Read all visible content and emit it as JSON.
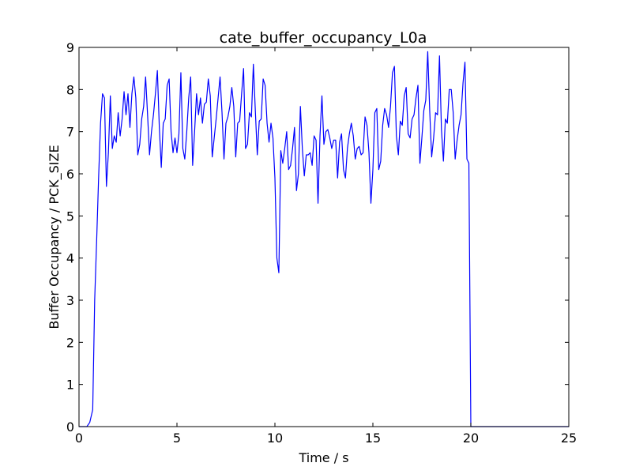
{
  "chart_data": {
    "type": "line",
    "title": "cate_buffer_occupancy_L0a",
    "xlabel": "Time / s",
    "ylabel": "Buffer Occupancy / PCK_SIZE",
    "xlim": [
      0,
      25
    ],
    "ylim": [
      0,
      9
    ],
    "xticks": [
      0,
      5,
      10,
      15,
      20,
      25
    ],
    "yticks": [
      0,
      1,
      2,
      3,
      4,
      5,
      6,
      7,
      8,
      9
    ],
    "grid": false,
    "legend": "none",
    "series": [
      {
        "color": "#0000ff",
        "points": [
          [
            0.0,
            0.0
          ],
          [
            0.4,
            0.0
          ],
          [
            0.55,
            0.1
          ],
          [
            0.7,
            0.4
          ],
          [
            0.8,
            3.0
          ],
          [
            0.9,
            4.4
          ],
          [
            1.0,
            5.9
          ],
          [
            1.1,
            7.2
          ],
          [
            1.2,
            7.9
          ],
          [
            1.3,
            7.8
          ],
          [
            1.4,
            5.7
          ],
          [
            1.5,
            6.5
          ],
          [
            1.6,
            7.85
          ],
          [
            1.7,
            6.6
          ],
          [
            1.8,
            6.9
          ],
          [
            1.9,
            6.75
          ],
          [
            2.0,
            7.45
          ],
          [
            2.1,
            6.9
          ],
          [
            2.2,
            7.3
          ],
          [
            2.3,
            7.95
          ],
          [
            2.4,
            7.4
          ],
          [
            2.5,
            7.9
          ],
          [
            2.6,
            7.1
          ],
          [
            2.7,
            7.9
          ],
          [
            2.8,
            8.3
          ],
          [
            2.9,
            7.8
          ],
          [
            3.0,
            6.45
          ],
          [
            3.1,
            6.7
          ],
          [
            3.2,
            7.3
          ],
          [
            3.3,
            7.6
          ],
          [
            3.4,
            8.3
          ],
          [
            3.5,
            7.4
          ],
          [
            3.6,
            6.45
          ],
          [
            3.7,
            7.0
          ],
          [
            3.8,
            7.4
          ],
          [
            3.9,
            7.9
          ],
          [
            4.0,
            8.45
          ],
          [
            4.1,
            7.1
          ],
          [
            4.2,
            6.15
          ],
          [
            4.3,
            7.2
          ],
          [
            4.4,
            7.3
          ],
          [
            4.5,
            8.1
          ],
          [
            4.6,
            8.25
          ],
          [
            4.7,
            7.0
          ],
          [
            4.8,
            6.5
          ],
          [
            4.9,
            6.85
          ],
          [
            5.0,
            6.5
          ],
          [
            5.1,
            6.95
          ],
          [
            5.2,
            8.4
          ],
          [
            5.3,
            6.6
          ],
          [
            5.4,
            6.35
          ],
          [
            5.5,
            7.0
          ],
          [
            5.6,
            7.8
          ],
          [
            5.7,
            8.3
          ],
          [
            5.8,
            6.2
          ],
          [
            5.9,
            7.0
          ],
          [
            6.0,
            7.9
          ],
          [
            6.1,
            7.4
          ],
          [
            6.2,
            7.8
          ],
          [
            6.3,
            7.2
          ],
          [
            6.4,
            7.65
          ],
          [
            6.5,
            7.7
          ],
          [
            6.6,
            8.25
          ],
          [
            6.7,
            7.85
          ],
          [
            6.8,
            6.4
          ],
          [
            6.9,
            6.85
          ],
          [
            7.0,
            7.3
          ],
          [
            7.1,
            7.8
          ],
          [
            7.2,
            8.3
          ],
          [
            7.3,
            7.45
          ],
          [
            7.4,
            6.35
          ],
          [
            7.5,
            7.2
          ],
          [
            7.6,
            7.35
          ],
          [
            7.7,
            7.6
          ],
          [
            7.8,
            8.05
          ],
          [
            7.9,
            7.6
          ],
          [
            8.0,
            6.4
          ],
          [
            8.1,
            7.2
          ],
          [
            8.2,
            7.25
          ],
          [
            8.3,
            7.9
          ],
          [
            8.4,
            8.5
          ],
          [
            8.5,
            6.6
          ],
          [
            8.6,
            6.7
          ],
          [
            8.7,
            7.45
          ],
          [
            8.8,
            7.35
          ],
          [
            8.9,
            8.6
          ],
          [
            9.0,
            7.5
          ],
          [
            9.1,
            6.45
          ],
          [
            9.2,
            7.25
          ],
          [
            9.3,
            7.3
          ],
          [
            9.4,
            8.25
          ],
          [
            9.5,
            8.1
          ],
          [
            9.6,
            7.2
          ],
          [
            9.7,
            6.75
          ],
          [
            9.8,
            7.2
          ],
          [
            9.9,
            6.85
          ],
          [
            10.0,
            5.9
          ],
          [
            10.1,
            4.0
          ],
          [
            10.2,
            3.65
          ],
          [
            10.3,
            6.55
          ],
          [
            10.4,
            6.25
          ],
          [
            10.5,
            6.6
          ],
          [
            10.6,
            7.0
          ],
          [
            10.7,
            6.1
          ],
          [
            10.8,
            6.2
          ],
          [
            10.9,
            6.6
          ],
          [
            11.0,
            7.1
          ],
          [
            11.1,
            5.6
          ],
          [
            11.2,
            6.0
          ],
          [
            11.3,
            7.6
          ],
          [
            11.4,
            6.6
          ],
          [
            11.5,
            5.95
          ],
          [
            11.6,
            6.45
          ],
          [
            11.7,
            6.45
          ],
          [
            11.8,
            6.5
          ],
          [
            11.9,
            6.2
          ],
          [
            12.0,
            6.9
          ],
          [
            12.1,
            6.8
          ],
          [
            12.2,
            5.3
          ],
          [
            12.3,
            6.9
          ],
          [
            12.4,
            7.85
          ],
          [
            12.5,
            6.7
          ],
          [
            12.6,
            7.0
          ],
          [
            12.7,
            7.05
          ],
          [
            12.8,
            6.85
          ],
          [
            12.9,
            6.6
          ],
          [
            13.0,
            6.8
          ],
          [
            13.1,
            6.8
          ],
          [
            13.2,
            5.9
          ],
          [
            13.3,
            6.75
          ],
          [
            13.4,
            6.95
          ],
          [
            13.5,
            6.1
          ],
          [
            13.6,
            5.9
          ],
          [
            13.7,
            6.6
          ],
          [
            13.8,
            6.95
          ],
          [
            13.9,
            7.2
          ],
          [
            14.0,
            6.9
          ],
          [
            14.1,
            6.35
          ],
          [
            14.2,
            6.6
          ],
          [
            14.3,
            6.65
          ],
          [
            14.4,
            6.45
          ],
          [
            14.5,
            6.5
          ],
          [
            14.6,
            7.35
          ],
          [
            14.7,
            7.15
          ],
          [
            14.8,
            6.5
          ],
          [
            14.9,
            5.3
          ],
          [
            15.0,
            6.1
          ],
          [
            15.1,
            7.45
          ],
          [
            15.2,
            7.55
          ],
          [
            15.3,
            6.1
          ],
          [
            15.4,
            6.3
          ],
          [
            15.5,
            7.15
          ],
          [
            15.6,
            7.55
          ],
          [
            15.7,
            7.4
          ],
          [
            15.8,
            7.1
          ],
          [
            15.9,
            7.6
          ],
          [
            16.0,
            8.4
          ],
          [
            16.1,
            8.55
          ],
          [
            16.2,
            6.9
          ],
          [
            16.3,
            6.45
          ],
          [
            16.4,
            7.25
          ],
          [
            16.5,
            7.15
          ],
          [
            16.6,
            7.85
          ],
          [
            16.7,
            8.05
          ],
          [
            16.8,
            6.95
          ],
          [
            16.9,
            6.85
          ],
          [
            17.0,
            7.3
          ],
          [
            17.1,
            7.4
          ],
          [
            17.2,
            7.8
          ],
          [
            17.3,
            8.1
          ],
          [
            17.4,
            6.25
          ],
          [
            17.5,
            6.85
          ],
          [
            17.6,
            7.5
          ],
          [
            17.7,
            7.75
          ],
          [
            17.8,
            8.9
          ],
          [
            17.9,
            7.5
          ],
          [
            18.0,
            6.4
          ],
          [
            18.1,
            6.85
          ],
          [
            18.2,
            7.45
          ],
          [
            18.3,
            7.4
          ],
          [
            18.4,
            8.8
          ],
          [
            18.5,
            7.05
          ],
          [
            18.6,
            6.3
          ],
          [
            18.7,
            7.3
          ],
          [
            18.8,
            7.2
          ],
          [
            18.9,
            8.0
          ],
          [
            19.0,
            8.0
          ],
          [
            19.1,
            7.45
          ],
          [
            19.2,
            6.35
          ],
          [
            19.3,
            6.8
          ],
          [
            19.4,
            7.15
          ],
          [
            19.5,
            7.4
          ],
          [
            19.6,
            8.15
          ],
          [
            19.7,
            8.65
          ],
          [
            19.8,
            6.35
          ],
          [
            19.9,
            6.25
          ],
          [
            20.0,
            0.0
          ],
          [
            25.0,
            0.0
          ]
        ]
      }
    ]
  }
}
